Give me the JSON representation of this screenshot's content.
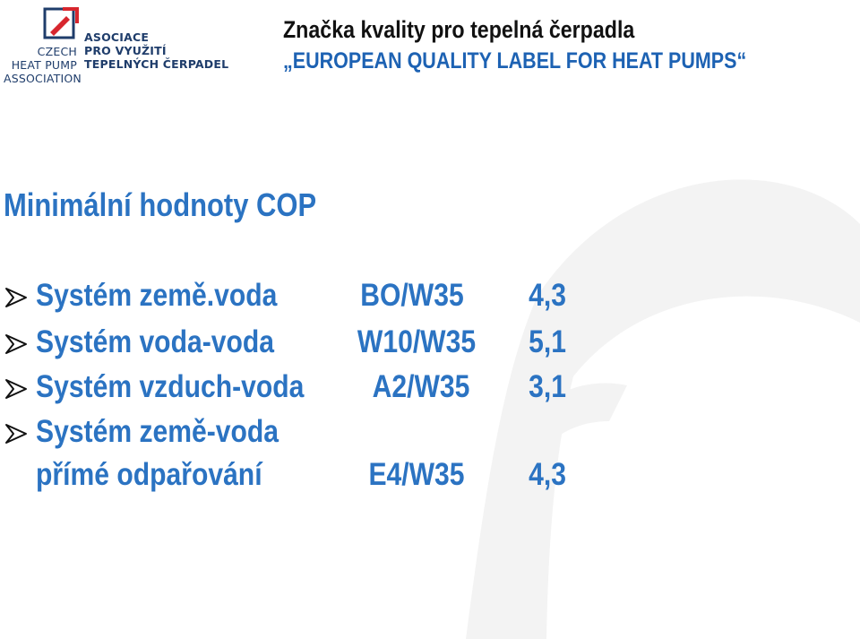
{
  "logo": {
    "left_lines": [
      "CZECH",
      "HEAT PUMP",
      "ASSOCIATION"
    ],
    "right_lines": [
      "ASOCIACE",
      "PRO VYUŽITÍ",
      "TEPELNÝCH ČERPADEL"
    ]
  },
  "header": {
    "title_cz": "Značka kvality pro tepelná čerpadla",
    "title_en": "„EUROPEAN QUALITY LABEL FOR HEAT PUMPS“"
  },
  "section": {
    "title": "Minimální hodnoty COP"
  },
  "rows": [
    {
      "label": "Systém země.voda",
      "code": "BO/W35",
      "value": "4,3",
      "bullet": true
    },
    {
      "label": "Systém voda-voda",
      "code": "W10/W35",
      "value": "5,1",
      "bullet": true
    },
    {
      "label": "Systém vzduch-voda",
      "code": "A2/W35",
      "value": "3,1",
      "bullet": true
    },
    {
      "label": "Systém země-voda",
      "code": "",
      "value": "",
      "bullet": true
    },
    {
      "label": "přímé odpařování",
      "code": "E4/W35",
      "value": "4,3",
      "bullet": false
    }
  ],
  "colors": {
    "accent": "#2b73c2",
    "title_en": "#1d62b3",
    "logo_red": "#d7262e",
    "logo_blue": "#1f3d6b",
    "watermark": "#f1f1f1"
  }
}
